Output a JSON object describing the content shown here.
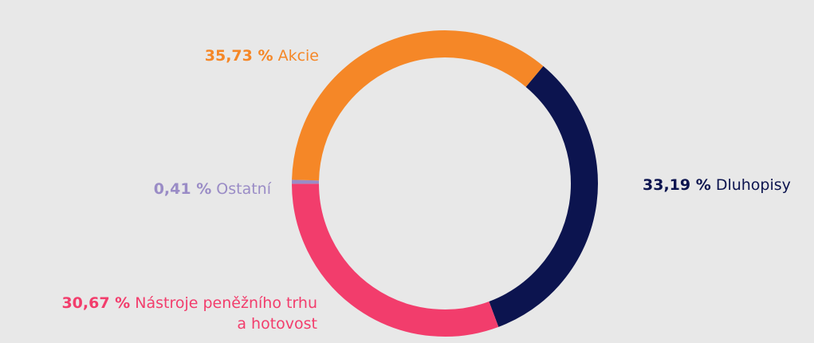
{
  "chart_data": {
    "type": "donut",
    "categories": [
      "Dluhopisy",
      "Nástroje peněžního trhu\na hotovost",
      "Ostatní",
      "Akcie"
    ],
    "values": [
      33.19,
      30.67,
      0.41,
      35.73
    ],
    "value_labels": [
      "33,19 %",
      "30,67 %",
      "0,41 %",
      "35,73 %"
    ],
    "colors": [
      "#0c144f",
      "#f23d6c",
      "#9a8cc6",
      "#f58727"
    ]
  }
}
